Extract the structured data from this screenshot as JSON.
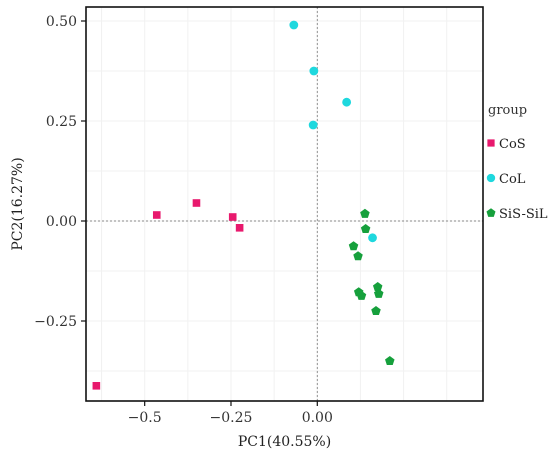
{
  "chart_data": {
    "type": "scatter",
    "xlabel": "PC1(40.55%)",
    "ylabel": "PC2(16.27%)",
    "xlim": [
      -0.67,
      0.48
    ],
    "ylim": [
      -0.45,
      0.535
    ],
    "x_ticks": [
      -0.5,
      -0.25,
      0.0
    ],
    "x_tick_labels": [
      "−0.5",
      "−0.25",
      "0.00"
    ],
    "y_ticks": [
      0.5,
      0.25,
      0.0,
      -0.25
    ],
    "y_tick_labels": [
      "0.50",
      "0.25",
      "0.00",
      "−0.25"
    ],
    "reference_lines": {
      "x": 0,
      "y": 0,
      "style": "dotted"
    },
    "grid": true,
    "legend": {
      "title": "group",
      "position": "right"
    },
    "series": [
      {
        "name": "CoS",
        "color": "#e8196d",
        "marker": "square",
        "points": [
          {
            "x": -0.465,
            "y": 0.015
          },
          {
            "x": -0.35,
            "y": 0.045
          },
          {
            "x": -0.245,
            "y": 0.01
          },
          {
            "x": -0.225,
            "y": -0.017
          },
          {
            "x": -0.64,
            "y": -0.412
          }
        ]
      },
      {
        "name": "CoL",
        "color": "#1ed8de",
        "marker": "circle",
        "points": [
          {
            "x": -0.068,
            "y": 0.49
          },
          {
            "x": -0.01,
            "y": 0.375
          },
          {
            "x": 0.085,
            "y": 0.297
          },
          {
            "x": -0.012,
            "y": 0.24
          },
          {
            "x": 0.16,
            "y": -0.042
          }
        ]
      },
      {
        "name": "SiS-SiL",
        "color": "#16a03c",
        "marker": "pentagon",
        "points": [
          {
            "x": 0.138,
            "y": 0.018
          },
          {
            "x": 0.14,
            "y": -0.02
          },
          {
            "x": 0.105,
            "y": -0.063
          },
          {
            "x": 0.118,
            "y": -0.088
          },
          {
            "x": 0.175,
            "y": -0.165
          },
          {
            "x": 0.178,
            "y": -0.182
          },
          {
            "x": 0.12,
            "y": -0.178
          },
          {
            "x": 0.128,
            "y": -0.187
          },
          {
            "x": 0.17,
            "y": -0.225
          },
          {
            "x": 0.21,
            "y": -0.35
          }
        ]
      }
    ]
  }
}
